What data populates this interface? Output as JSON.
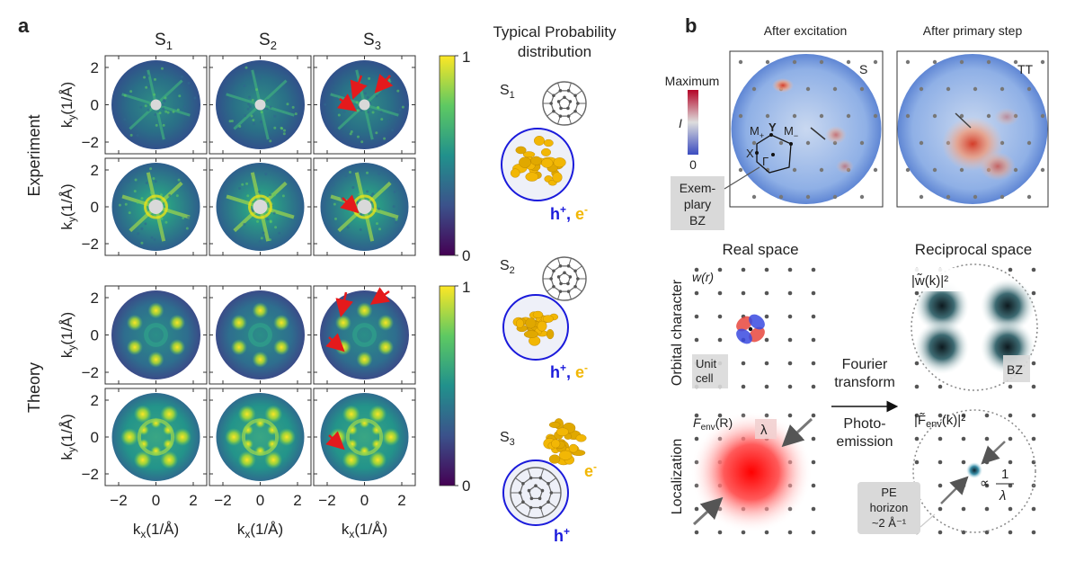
{
  "panel_a": {
    "label": "a",
    "columns": [
      "S",
      "S",
      "S"
    ],
    "column_subs": [
      "1",
      "2",
      "3"
    ],
    "row_group_experiment": "Experiment",
    "row_group_theory": "Theory",
    "ylabel_main": "k",
    "ylabel_sub": "y",
    "ylabel_unit": "(1/Å)",
    "xlabel_main": "k",
    "xlabel_sub": "x",
    "xlabel_unit": "(1/Å)",
    "y_ticks": [
      "2",
      "0",
      "−2"
    ],
    "x_ticks": [
      "−2",
      "0",
      "2"
    ],
    "colorbar_top": "1",
    "colorbar_bottom": "0",
    "colors": {
      "low": "#440154",
      "mid": "#21918c",
      "high": "#fde725",
      "arrow": "#e41a1c"
    }
  },
  "distribution": {
    "title_line1": "Typical Probability",
    "title_line2": "distribution",
    "states": [
      {
        "name": "S",
        "sub": "1",
        "hole": "h",
        "electron": "e"
      },
      {
        "name": "S",
        "sub": "2",
        "hole": "h",
        "electron": "e"
      },
      {
        "name": "S",
        "sub": "3",
        "hole": "h",
        "electron": "e"
      }
    ],
    "plus": "+",
    "minus": "-",
    "comma": ",",
    "colors": {
      "hole": "#1a1adb",
      "electron": "#f2b705"
    }
  },
  "panel_b": {
    "label": "b",
    "title_left": "After excitation",
    "title_right": "After primary step",
    "corner_left": "S",
    "corner_right": "TT",
    "colorbar_max": "Maximum",
    "colorbar_i": "I",
    "colorbar_zero": "0",
    "bz_labels": {
      "m_plus": "M",
      "m_plus_sub": "+",
      "y": "Y",
      "m_minus": "M",
      "m_minus_sub": "−",
      "x": "X",
      "gamma": "Γ"
    },
    "exemplary_line1": "Exem-",
    "exemplary_line2": "plary",
    "exemplary_line3": "BZ",
    "real_space": "Real space",
    "reciprocal_space": "Reciprocal space",
    "row_orbital": "Orbital character",
    "row_localization": "Localization",
    "w_label": "w(r)",
    "w_tilde_label": "|w̃(k)|²",
    "unit_cell_line1": "Unit",
    "unit_cell_line2": "cell",
    "bz": "BZ",
    "fourier_line1": "Fourier",
    "fourier_line2": "transform",
    "photo_line1": "Photo-",
    "photo_line2": "emission",
    "fenv_label": "F",
    "fenv_sub": "env",
    "fenv_arg": "(R)",
    "lambda": "λ",
    "fenv_tilde_label": "|F̃",
    "fenv_tilde_arg": "(k)|²",
    "prop": "∝",
    "one": "1",
    "pe_line1": "PE",
    "pe_line2": "horizon",
    "pe_line3": "~2 Å⁻¹"
  }
}
